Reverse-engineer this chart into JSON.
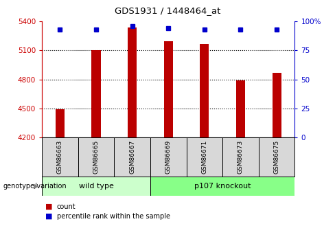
{
  "title": "GDS1931 / 1448464_at",
  "samples": [
    "GSM86663",
    "GSM86665",
    "GSM86667",
    "GSM86669",
    "GSM86671",
    "GSM86673",
    "GSM86675"
  ],
  "counts": [
    4490,
    5105,
    5340,
    5195,
    5165,
    4790,
    4870
  ],
  "percentile_ranks": [
    93,
    93,
    96,
    94,
    93,
    93,
    93
  ],
  "ylim_left": [
    4200,
    5400
  ],
  "ylim_right": [
    0,
    100
  ],
  "yticks_left": [
    4200,
    4500,
    4800,
    5100,
    5400
  ],
  "yticks_right": [
    0,
    25,
    50,
    75,
    100
  ],
  "ytick_labels_right": [
    "0",
    "25",
    "50",
    "75",
    "100%"
  ],
  "bar_color": "#bb0000",
  "marker_color": "#0000cc",
  "wild_type_indices": [
    0,
    1,
    2
  ],
  "knockout_indices": [
    3,
    4,
    5,
    6
  ],
  "wild_type_label": "wild type",
  "knockout_label": "p107 knockout",
  "group_label": "genotype/variation",
  "legend_count": "count",
  "legend_percentile": "percentile rank within the sample",
  "wild_type_color": "#ccffcc",
  "knockout_color": "#88ff88",
  "sample_box_color": "#d8d8d8",
  "left_axis_color": "#cc0000",
  "right_axis_color": "#0000cc",
  "bar_width": 0.25
}
